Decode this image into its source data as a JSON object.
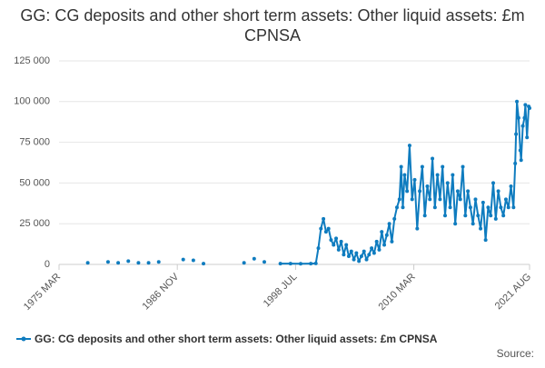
{
  "chart_data": {
    "type": "line",
    "title": "GG: CG deposits and other short term assets: Other liquid assets: £m CPNSA",
    "source": "Source:",
    "color": "#0f7cbf",
    "grid": true,
    "xlim": [
      "1975 MAR",
      "2021 AUG"
    ],
    "xticks": [
      "1975 MAR",
      "1986 NOV",
      "1998 JUL",
      "2010 MAR",
      "2021 AUG"
    ],
    "ylim": [
      0,
      125000
    ],
    "yticks": [
      0,
      {
        "value": 25000,
        "label": "25 000"
      },
      {
        "value": 50000,
        "label": "50 000"
      },
      {
        "value": 75000,
        "label": "75 000"
      },
      {
        "value": 100000,
        "label": "100 000"
      },
      {
        "value": 125000,
        "label": "125 000"
      }
    ],
    "x": [
      "1978 JAN",
      "1979 JAN",
      "1980 JAN",
      "1980 JUN",
      "1981 JAN",
      "1981 JUN",
      "1982 JAN",
      "1982 JUN",
      "1983 JAN",
      "1983 JUN",
      "1984 JAN",
      "1984 JUN",
      "1985 JAN",
      "1986 JAN",
      "1987 JUN",
      "1987 DEC",
      "1988 JUN",
      "1988 DEC",
      "1989 JUN",
      "1991 JAN",
      "1993 JUN",
      "1993 DEC",
      "1994 JUN",
      "1994 DEC",
      "1995 JUN",
      "1996 JUN",
      "1997 JAN",
      "1998 JAN",
      "1999 JAN",
      "2000 JAN",
      "2000 JUL",
      "2000 OCT",
      "2001 JAN",
      "2001 APR",
      "2001 JUL",
      "2001 OCT",
      "2002 JAN",
      "2002 APR",
      "2002 JUL",
      "2002 OCT",
      "2003 JAN",
      "2003 APR",
      "2003 JUL",
      "2003 OCT",
      "2004 JAN",
      "2004 APR",
      "2004 JUL",
      "2004 OCT",
      "2005 JAN",
      "2005 APR",
      "2005 JUL",
      "2005 OCT",
      "2006 JAN",
      "2006 APR",
      "2006 JUL",
      "2006 OCT",
      "2007 JAN",
      "2007 APR",
      "2007 JUL",
      "2007 OCT",
      "2008 JAN",
      "2008 APR",
      "2008 JUL",
      "2008 OCT",
      "2008 DEC",
      "2009 FEB",
      "2009 APR",
      "2009 JUL",
      "2009 OCT",
      "2010 JAN",
      "2010 APR",
      "2010 JUL",
      "2010 OCT",
      "2011 JAN",
      "2011 APR",
      "2011 JUL",
      "2011 OCT",
      "2012 JAN",
      "2012 APR",
      "2012 JUL",
      "2012 OCT",
      "2013 JAN",
      "2013 APR",
      "2013 JUL",
      "2013 OCT",
      "2014 JAN",
      "2014 APR",
      "2014 JUL",
      "2014 OCT",
      "2015 JAN",
      "2015 APR",
      "2015 JUL",
      "2015 OCT",
      "2016 JAN",
      "2016 APR",
      "2016 JUL",
      "2016 OCT",
      "2017 JAN",
      "2017 APR",
      "2017 JUL",
      "2017 OCT",
      "2018 JAN",
      "2018 APR",
      "2018 JUL",
      "2018 OCT",
      "2019 JAN",
      "2019 APR",
      "2019 JUL",
      "2019 OCT",
      "2020 JAN",
      "2020 MAR",
      "2020 APR",
      "2020 MAY",
      "2020 JUL",
      "2020 SEP",
      "2020 OCT",
      "2020 DEC",
      "2021 FEB",
      "2021 MAR",
      "2021 MAY",
      "2021 JUL",
      "2021 AUG"
    ],
    "series": [
      {
        "name": "GG: CG deposits and other short term assets: Other liquid assets: £m CPNSA",
        "color": "#0f7cbf",
        "values": [
          1000,
          null,
          1500,
          null,
          1000,
          null,
          2000,
          null,
          1000,
          null,
          1000,
          null,
          1500,
          null,
          3000,
          null,
          2500,
          null,
          500,
          null,
          1000,
          null,
          3500,
          null,
          1500,
          null,
          500,
          500,
          400,
          500,
          600,
          10000,
          22000,
          28000,
          20000,
          22000,
          15000,
          12000,
          16000,
          9000,
          14000,
          6000,
          12000,
          5000,
          8000,
          3000,
          7000,
          2000,
          5000,
          8000,
          3000,
          6000,
          10000,
          7000,
          14000,
          9000,
          20000,
          12000,
          18000,
          25000,
          14000,
          28000,
          35000,
          40000,
          60000,
          35000,
          55000,
          45000,
          73000,
          40000,
          52000,
          22000,
          45000,
          60000,
          30000,
          48000,
          40000,
          65000,
          35000,
          55000,
          40000,
          60000,
          30000,
          50000,
          35000,
          55000,
          25000,
          45000,
          40000,
          60000,
          30000,
          45000,
          35000,
          25000,
          40000,
          30000,
          22000,
          38000,
          15000,
          35000,
          30000,
          50000,
          28000,
          45000,
          35000,
          30000,
          40000,
          35000,
          48000,
          35000,
          62000,
          80000,
          100000,
          90000,
          70000,
          64000,
          85000,
          90000,
          98000,
          78000,
          97000,
          96000
        ]
      }
    ]
  }
}
